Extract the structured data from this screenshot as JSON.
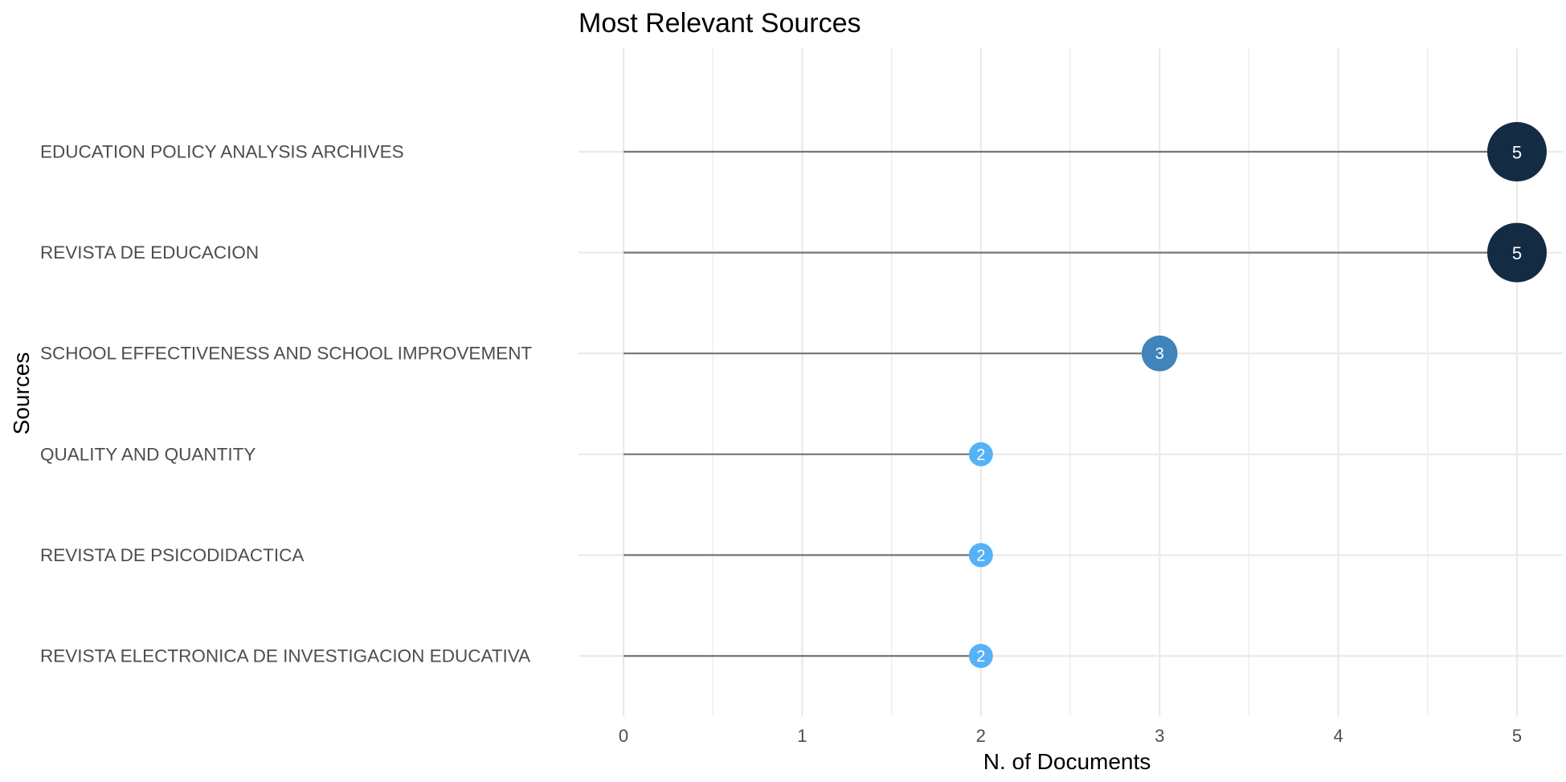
{
  "chart_data": {
    "type": "lollipop",
    "title": "Most Relevant Sources",
    "xlabel": "N. of Documents",
    "ylabel": "Sources",
    "xlim": [
      0,
      5
    ],
    "xticks": [
      0,
      1,
      2,
      3,
      4,
      5
    ],
    "grid": true,
    "categories": [
      "EDUCATION POLICY ANALYSIS ARCHIVES",
      "REVISTA DE EDUCACION",
      "SCHOOL EFFECTIVENESS AND SCHOOL IMPROVEMENT",
      "QUALITY AND QUANTITY",
      "REVISTA DE PSICODIDACTICA",
      "REVISTA ELECTRONICA DE INVESTIGACION EDUCATIVA"
    ],
    "values": [
      5,
      5,
      3,
      2,
      2,
      2
    ],
    "colors": {
      "high": "#132b43",
      "mid": "#3f82bb",
      "low": "#56b1f7",
      "stem": "#777777",
      "grid": "#ebebeb"
    }
  }
}
